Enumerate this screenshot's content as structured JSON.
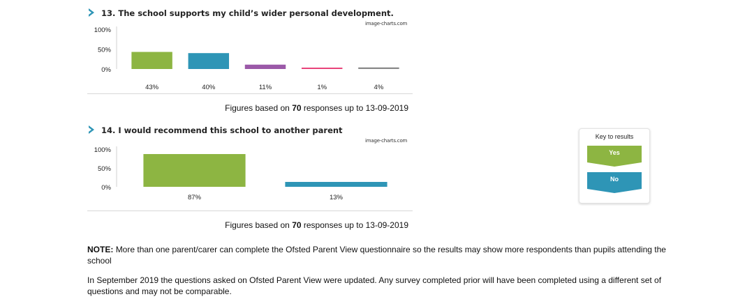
{
  "questions": [
    {
      "title": "13. The school supports my child’s wider personal development.",
      "credit": "image-charts.com",
      "figures_prefix": "Figures based on",
      "responses": "70",
      "figures_suffix": "responses up to 13-09-2019"
    },
    {
      "title": "14. I would recommend this school to another parent",
      "credit": "image-charts.com",
      "figures_prefix": "Figures based on",
      "responses": "70",
      "figures_suffix": "responses up to 13-09-2019"
    }
  ],
  "chart_data": [
    {
      "type": "bar",
      "title": "13. The school supports my child’s wider personal development.",
      "categories": [
        "43%",
        "40%",
        "11%",
        "1%",
        "4%"
      ],
      "values": [
        43,
        40,
        11,
        1,
        4
      ],
      "colors": [
        "#8db542",
        "#2e95b6",
        "#9b59a8",
        "#e8437a",
        "#8a8a8a"
      ],
      "ytick_labels": [
        "100%",
        "50%",
        "0%"
      ],
      "ylim": [
        0,
        100
      ],
      "grid": false
    },
    {
      "type": "bar",
      "title": "14. I would recommend this school to another parent",
      "categories": [
        "87%",
        "13%"
      ],
      "values": [
        87,
        13
      ],
      "colors": [
        "#8db542",
        "#2e95b6"
      ],
      "ytick_labels": [
        "100%",
        "50%",
        "0%"
      ],
      "ylim": [
        0,
        100
      ],
      "grid": false
    }
  ],
  "key": {
    "title": "Key to results",
    "items": [
      {
        "label": "Yes",
        "color": "#8db542"
      },
      {
        "label": "No",
        "color": "#2e95b6"
      }
    ]
  },
  "notes": {
    "note_label": "NOTE:",
    "note_text": "More than one parent/carer can complete the Ofsted Parent View questionnaire so the results may show more respondents than pupils attending the school",
    "update_text": "In September 2019 the questions asked on Ofsted Parent View were updated. Any survey completed prior will have been completed using a different set of questions and may not be comparable."
  },
  "colors": {
    "chevron": "#2e95b6"
  }
}
